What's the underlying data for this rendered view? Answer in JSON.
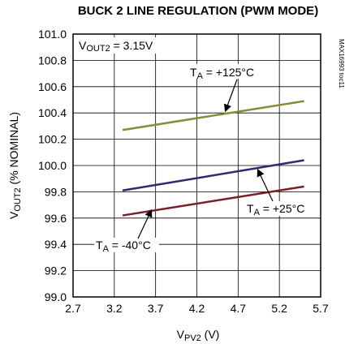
{
  "chart_data": {
    "type": "line",
    "title": "BUCK 2 LINE REGULATION (PWM MODE)",
    "xlabel": {
      "main": "V",
      "sub": "PV2",
      "unit": " (V)"
    },
    "ylabel": {
      "main": "V",
      "sub": "OUT2",
      "unit": " (% NOMINAL)"
    },
    "xlim": [
      2.7,
      5.7
    ],
    "ylim": [
      99.0,
      101.0
    ],
    "xticks": [
      "2.7",
      "3.2",
      "3.7",
      "4.2",
      "4.7",
      "5.2",
      "5.7"
    ],
    "yticks": [
      "99.0",
      "99.2",
      "99.4",
      "99.6",
      "99.8",
      "100.0",
      "100.2",
      "100.4",
      "100.6",
      "100.8",
      "101.0"
    ],
    "grid": true,
    "condition": {
      "main": "V",
      "sub": "OUT2",
      "rest": " = 3.15V"
    },
    "part_code": "MAX16993 toc11",
    "series": [
      {
        "name": "+125°C",
        "label": {
          "main": "T",
          "sub": "A",
          "rest": " = +125°C"
        },
        "color": "#8a8a3c",
        "x": [
          3.3,
          5.5
        ],
        "y": [
          100.27,
          100.49
        ]
      },
      {
        "name": "+25°C",
        "label": {
          "main": "T",
          "sub": "A",
          "rest": " = +25°C"
        },
        "color": "#2b2b6e",
        "x": [
          3.3,
          5.5
        ],
        "y": [
          99.81,
          100.04
        ]
      },
      {
        "name": "-40°C",
        "label": {
          "main": "T",
          "sub": "A",
          "rest": " = -40°C"
        },
        "color": "#7a1f2a",
        "x": [
          3.3,
          5.5
        ],
        "y": [
          99.62,
          99.84
        ]
      }
    ]
  }
}
